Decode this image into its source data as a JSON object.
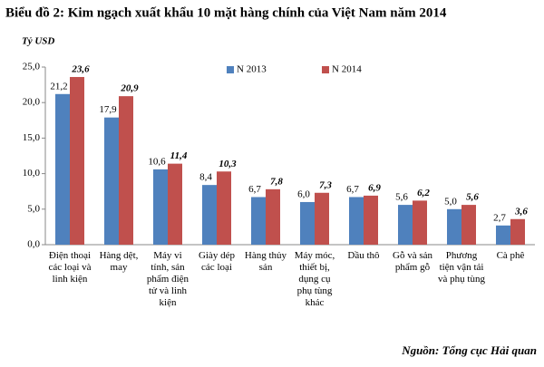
{
  "chart_data": {
    "type": "bar",
    "title": "Biểu đồ 2: Kim ngạch xuất khẩu 10 mặt hàng chính của Việt Nam năm 2014",
    "y_label": "Tỷ USD",
    "source": "Nguồn: Tổng cục Hải quan",
    "categories": [
      "Điện thoại các loại và linh kiện",
      "Hàng dệt, may",
      "Máy vi tính, sản phẩm điện tử và linh kiện",
      "Giày dép các loại",
      "Hàng thủy sản",
      "Máy móc, thiết bị, dụng cụ phụ tùng khác",
      "Dầu thô",
      "Gỗ và sản phẩm gỗ",
      "Phương tiện vận tải và phụ tùng",
      "Cà phê"
    ],
    "series": [
      {
        "name": "N 2013",
        "color": "#4f81bd",
        "values": [
          21.2,
          17.9,
          10.6,
          8.4,
          6.7,
          6.0,
          6.7,
          5.6,
          5.0,
          2.7
        ],
        "value_labels": [
          "21,2",
          "17,9",
          "10,6",
          "8,4",
          "6,7",
          "6,0",
          "6,7",
          "5,6",
          "5,0",
          "2,7"
        ]
      },
      {
        "name": "N 2014",
        "color": "#c0504d",
        "values": [
          23.6,
          20.9,
          11.4,
          10.3,
          7.8,
          7.3,
          6.9,
          6.2,
          5.6,
          3.6
        ],
        "value_labels": [
          "23,6",
          "20,9",
          "11,4",
          "10,3",
          "7,8",
          "7,3",
          "6,9",
          "6,2",
          "5,6",
          "3,6"
        ]
      }
    ],
    "ylim": [
      0,
      25
    ],
    "yticks": [
      {
        "value": 0,
        "label": "0,0"
      },
      {
        "value": 5,
        "label": "5,0"
      },
      {
        "value": 10,
        "label": "10,0"
      },
      {
        "value": 15,
        "label": "15,0"
      },
      {
        "value": 20,
        "label": "20,0"
      },
      {
        "value": 25,
        "label": "25,0"
      }
    ],
    "grid": false
  }
}
